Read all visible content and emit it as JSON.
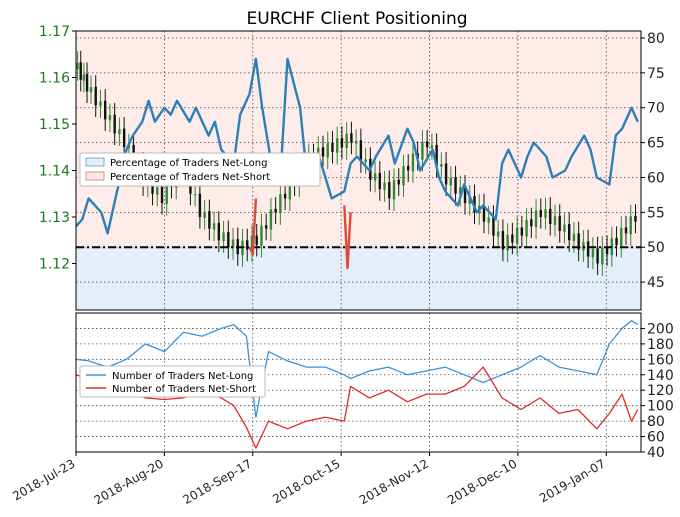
{
  "chart_data": [
    {
      "panel": "top",
      "type": "line",
      "title": "EURCHF Client Positioning",
      "colors": {
        "price_up": "#2e8b2e",
        "price_down": "#111111",
        "net_long": "#2d7fba",
        "net_short": "#e04a3a",
        "long_fill": "#e3eef9",
        "short_fill": "#fdecea",
        "left_axis_text": "#1a7a1a"
      },
      "left_axis": {
        "ylim": [
          1.11,
          1.17
        ],
        "ticks": [
          "1.12",
          "1.13",
          "1.14",
          "1.15",
          "1.16",
          "1.17"
        ]
      },
      "right_axis": {
        "ylim": [
          41,
          81
        ],
        "ticks": [
          "45",
          "50",
          "55",
          "60",
          "65",
          "70",
          "75",
          "80"
        ]
      },
      "grid": true,
      "reference_line": 50,
      "legend": {
        "placement": "center-left",
        "entries": [
          "Percentage of Traders Net-Long",
          "Percentage of Traders Net-Short"
        ]
      },
      "series": [
        {
          "name": "Percentage of Traders Net-Long",
          "axis": "right",
          "x": [
            "2018-07-23",
            "2018-07-25",
            "2018-07-27",
            "2018-07-31",
            "2018-08-02",
            "2018-08-06",
            "2018-08-08",
            "2018-08-10",
            "2018-08-13",
            "2018-08-15",
            "2018-08-17",
            "2018-08-20",
            "2018-08-22",
            "2018-08-24",
            "2018-08-28",
            "2018-08-30",
            "2018-09-03",
            "2018-09-05",
            "2018-09-07",
            "2018-09-11",
            "2018-09-13",
            "2018-09-16",
            "2018-09-18",
            "2018-09-20",
            "2018-09-24",
            "2018-09-26",
            "2018-09-28",
            "2018-10-02",
            "2018-10-04",
            "2018-10-08",
            "2018-10-10",
            "2018-10-12",
            "2018-10-16",
            "2018-10-18",
            "2018-10-20",
            "2018-10-24",
            "2018-10-26",
            "2018-10-30",
            "2018-11-01",
            "2018-11-05",
            "2018-11-07",
            "2018-11-09",
            "2018-11-13",
            "2018-11-15",
            "2018-11-17",
            "2018-11-21",
            "2018-11-23",
            "2018-11-27",
            "2018-11-29",
            "2018-12-03",
            "2018-12-05",
            "2018-12-07",
            "2018-12-11",
            "2018-12-13",
            "2018-12-15",
            "2018-12-19",
            "2018-12-21",
            "2018-12-25",
            "2018-12-27",
            "2018-12-31",
            "2019-01-02",
            "2019-01-04",
            "2019-01-08",
            "2019-01-10",
            "2019-01-12",
            "2019-01-15",
            "2019-01-17"
          ],
          "values": [
            53,
            54,
            57,
            55,
            52,
            60,
            64,
            66,
            68,
            71,
            68,
            70,
            69,
            71,
            68,
            70,
            66,
            68,
            64,
            62,
            69,
            72,
            77,
            70,
            59,
            62,
            77,
            70,
            61,
            63,
            60,
            57,
            58,
            62,
            63,
            61,
            63,
            66,
            62,
            67,
            65,
            61,
            64,
            60,
            58,
            56,
            59,
            55,
            56,
            54,
            62,
            64,
            60,
            63,
            65,
            63,
            60,
            61,
            63,
            66,
            64,
            60,
            59,
            66,
            67,
            70,
            68
          ]
        },
        {
          "name": "Percentage of Traders Net-Short",
          "axis": "right",
          "x": [
            "2018-09-16",
            "2018-09-17",
            "2018-09-18",
            "2018-10-16",
            "2018-10-17",
            "2018-10-18"
          ],
          "values": [
            50,
            49,
            57,
            56,
            47,
            55
          ]
        },
        {
          "name": "EURCHF",
          "axis": "left",
          "type": "candlestick",
          "x": [
            "2018-07-23",
            "2018-07-27",
            "2018-08-02",
            "2018-08-08",
            "2018-08-14",
            "2018-08-20",
            "2018-08-26",
            "2018-09-01",
            "2018-09-07",
            "2018-09-13",
            "2018-09-19",
            "2018-09-25",
            "2018-10-01",
            "2018-10-07",
            "2018-10-13",
            "2018-10-19",
            "2018-10-25",
            "2018-10-31",
            "2018-11-06",
            "2018-11-12",
            "2018-11-18",
            "2018-11-24",
            "2018-11-30",
            "2018-12-06",
            "2018-12-12",
            "2018-12-18",
            "2018-12-24",
            "2018-12-30",
            "2019-01-05",
            "2019-01-11",
            "2019-01-17"
          ],
          "values": [
            1.163,
            1.158,
            1.152,
            1.146,
            1.138,
            1.134,
            1.141,
            1.131,
            1.126,
            1.123,
            1.125,
            1.132,
            1.138,
            1.143,
            1.145,
            1.147,
            1.139,
            1.135,
            1.141,
            1.146,
            1.138,
            1.134,
            1.13,
            1.124,
            1.127,
            1.131,
            1.128,
            1.124,
            1.121,
            1.125,
            1.13
          ]
        }
      ]
    },
    {
      "panel": "bottom",
      "type": "line",
      "ylim": [
        40,
        220
      ],
      "ticks": [
        "40",
        "60",
        "80",
        "100",
        "120",
        "140",
        "160",
        "180",
        "200"
      ],
      "grid": true,
      "legend": {
        "placement": "center-left",
        "entries": [
          "Number of Traders Net-Long",
          "Number of Traders Net-Short"
        ]
      },
      "x_ticks": [
        "2018-Jul-23",
        "2018-Aug-20",
        "2018-Sep-17",
        "2018-Oct-15",
        "2018-Nov-12",
        "2018-Dec-10",
        "2019-Jan-07"
      ],
      "series": [
        {
          "name": "Number of Traders Net-Long",
          "x": [
            "2018-07-23",
            "2018-07-27",
            "2018-08-02",
            "2018-08-08",
            "2018-08-14",
            "2018-08-20",
            "2018-08-26",
            "2018-09-01",
            "2018-09-07",
            "2018-09-11",
            "2018-09-15",
            "2018-09-18",
            "2018-09-22",
            "2018-09-28",
            "2018-10-04",
            "2018-10-10",
            "2018-10-16",
            "2018-10-18",
            "2018-10-24",
            "2018-10-30",
            "2018-11-05",
            "2018-11-11",
            "2018-11-17",
            "2018-11-23",
            "2018-11-29",
            "2018-12-05",
            "2018-12-11",
            "2018-12-17",
            "2018-12-23",
            "2018-12-29",
            "2019-01-04",
            "2019-01-08",
            "2019-01-12",
            "2019-01-15",
            "2019-01-17"
          ],
          "values": [
            160,
            158,
            150,
            160,
            180,
            170,
            195,
            190,
            200,
            205,
            190,
            85,
            170,
            158,
            150,
            150,
            140,
            135,
            145,
            150,
            140,
            145,
            150,
            140,
            130,
            140,
            150,
            165,
            150,
            145,
            140,
            180,
            200,
            210,
            205
          ]
        },
        {
          "name": "Number of Traders Net-Short",
          "x": [
            "2018-07-23",
            "2018-07-27",
            "2018-08-02",
            "2018-08-08",
            "2018-08-14",
            "2018-08-20",
            "2018-08-26",
            "2018-09-01",
            "2018-09-07",
            "2018-09-11",
            "2018-09-15",
            "2018-09-18",
            "2018-09-22",
            "2018-09-28",
            "2018-10-04",
            "2018-10-10",
            "2018-10-16",
            "2018-10-18",
            "2018-10-24",
            "2018-10-30",
            "2018-11-05",
            "2018-11-11",
            "2018-11-17",
            "2018-11-23",
            "2018-11-29",
            "2018-12-05",
            "2018-12-11",
            "2018-12-17",
            "2018-12-23",
            "2018-12-29",
            "2019-01-04",
            "2019-01-08",
            "2019-01-12",
            "2019-01-15",
            "2019-01-17"
          ],
          "values": [
            140,
            135,
            138,
            120,
            110,
            108,
            110,
            118,
            110,
            100,
            72,
            45,
            80,
            70,
            80,
            85,
            80,
            125,
            110,
            120,
            105,
            115,
            115,
            125,
            150,
            110,
            95,
            110,
            90,
            95,
            70,
            90,
            115,
            80,
            95
          ]
        }
      ]
    }
  ]
}
